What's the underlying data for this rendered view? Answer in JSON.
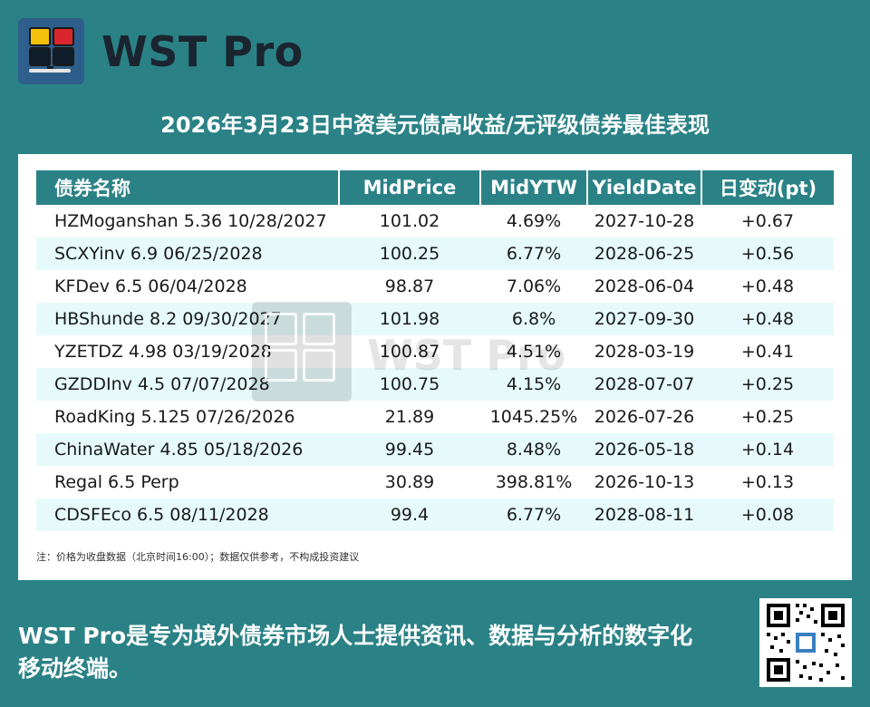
{
  "brand": {
    "name": "WST Pro"
  },
  "headline": "2026年3月23日中资美元债高收益/无评级债券最佳表现",
  "table": {
    "columns": [
      "债券名称",
      "MidPrice",
      "MidYTW",
      "YieldDate",
      "日变动(pt)"
    ],
    "rows": [
      [
        "HZMoganshan 5.36 10/28/2027",
        "101.02",
        "4.69%",
        "2027-10-28",
        "+0.67"
      ],
      [
        "SCXYinv 6.9 06/25/2028",
        "100.25",
        "6.77%",
        "2028-06-25",
        "+0.56"
      ],
      [
        "KFDev 6.5 06/04/2028",
        "98.87",
        "7.06%",
        "2028-06-04",
        "+0.48"
      ],
      [
        "HBShunde 8.2 09/30/2027",
        "101.98",
        "6.8%",
        "2027-09-30",
        "+0.48"
      ],
      [
        "YZETDZ 4.98 03/19/2028",
        "100.87",
        "4.51%",
        "2028-03-19",
        "+0.41"
      ],
      [
        "GZDDInv 4.5 07/07/2028",
        "100.75",
        "4.15%",
        "2028-07-07",
        "+0.25"
      ],
      [
        "RoadKing 5.125 07/26/2026",
        "21.89",
        "1045.25%",
        "2026-07-26",
        "+0.25"
      ],
      [
        "ChinaWater 4.85 05/18/2026",
        "99.45",
        "8.48%",
        "2026-05-18",
        "+0.14"
      ],
      [
        "Regal 6.5 Perp",
        "30.89",
        "398.81%",
        "2026-10-13",
        "+0.13"
      ],
      [
        "CDSFEco 6.5 08/11/2028",
        "99.4",
        "6.77%",
        "2028-08-11",
        "+0.08"
      ]
    ]
  },
  "note": "注：价格为收盘数据（北京时间16:00）；数据仅供参考，不构成投资建议",
  "tagline": "WST Pro是专为境外债券市场人士提供资讯、数据与分析的数字化移动终端。",
  "watermark": "WST Pro",
  "colors": {
    "background": "#2b8286",
    "header": "#2b8286",
    "row_alt": "#e6fafb"
  },
  "icons": [
    "wst-pro-logo-icon",
    "qr-code-icon"
  ]
}
